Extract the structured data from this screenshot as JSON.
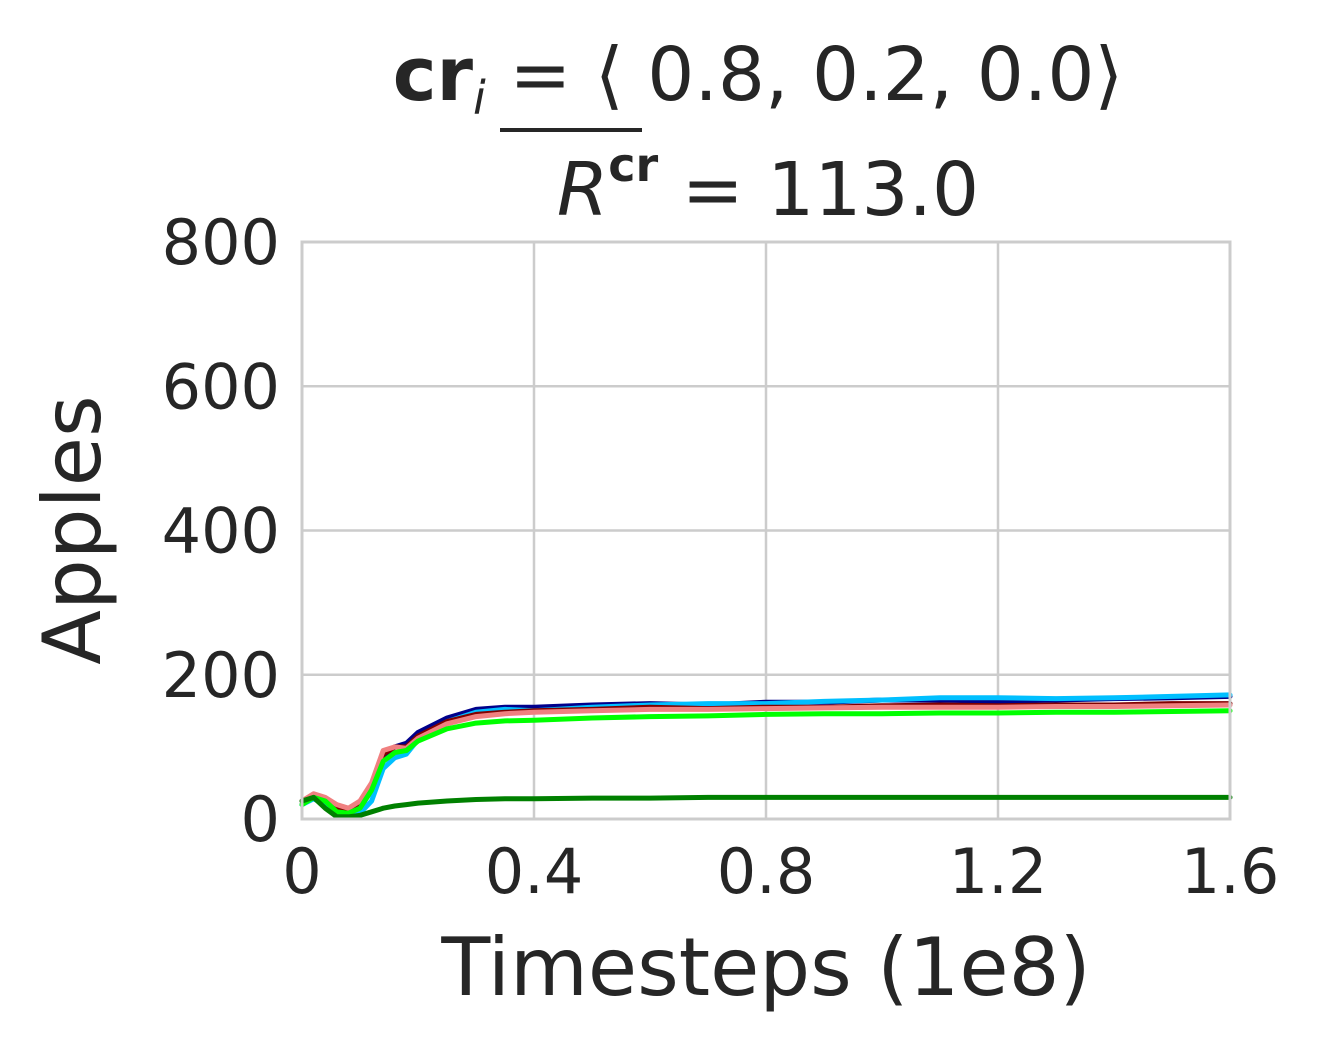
{
  "chart_data": {
    "type": "line",
    "title_line1": {
      "bold": "cr",
      "subscript": "i",
      "rest": " = ⟨ 0.8, 0.2, 0.0⟩"
    },
    "title_line2": {
      "symbol": "R",
      "superscript": "cr",
      "rest": " = 113.0"
    },
    "xlabel": "Timesteps (1e8)",
    "ylabel": "Apples",
    "xlim": [
      0,
      1.6
    ],
    "ylim": [
      0,
      800
    ],
    "xticks": [
      "0",
      "0.4",
      "0.8",
      "1.2",
      "1.6"
    ],
    "yticks": [
      "0",
      "200",
      "400",
      "600",
      "800"
    ],
    "grid": true,
    "series": [
      {
        "color": "#00008b",
        "x": [
          0,
          0.02,
          0.04,
          0.06,
          0.08,
          0.1,
          0.12,
          0.14,
          0.16,
          0.18,
          0.2,
          0.25,
          0.3,
          0.35,
          0.4,
          0.5,
          0.6,
          0.7,
          0.8,
          0.9,
          1.0,
          1.1,
          1.2,
          1.3,
          1.4,
          1.5,
          1.6
        ],
        "y": [
          20,
          30,
          25,
          10,
          5,
          15,
          40,
          85,
          100,
          105,
          120,
          140,
          152,
          155,
          155,
          158,
          160,
          158,
          162,
          162,
          165,
          165,
          163,
          165,
          167,
          168,
          170
        ]
      },
      {
        "color": "#00bfff",
        "x": [
          0,
          0.02,
          0.04,
          0.06,
          0.08,
          0.1,
          0.12,
          0.14,
          0.16,
          0.18,
          0.2,
          0.25,
          0.3,
          0.35,
          0.4,
          0.5,
          0.6,
          0.7,
          0.8,
          0.9,
          1.0,
          1.1,
          1.2,
          1.3,
          1.4,
          1.5,
          1.6
        ],
        "y": [
          20,
          28,
          20,
          5,
          5,
          8,
          25,
          70,
          85,
          90,
          110,
          135,
          148,
          152,
          150,
          155,
          158,
          160,
          160,
          163,
          165,
          168,
          168,
          167,
          168,
          170,
          172
        ]
      },
      {
        "color": "#800000",
        "x": [
          0,
          0.02,
          0.04,
          0.06,
          0.08,
          0.1,
          0.12,
          0.14,
          0.16,
          0.18,
          0.2,
          0.25,
          0.3,
          0.35,
          0.4,
          0.5,
          0.6,
          0.7,
          0.8,
          0.9,
          1.0,
          1.1,
          1.2,
          1.3,
          1.4,
          1.5,
          1.6
        ],
        "y": [
          25,
          32,
          28,
          15,
          12,
          20,
          45,
          90,
          100,
          100,
          115,
          135,
          145,
          148,
          150,
          152,
          155,
          153,
          155,
          155,
          157,
          158,
          157,
          158,
          158,
          160,
          160
        ]
      },
      {
        "color": "#f08080",
        "x": [
          0,
          0.02,
          0.04,
          0.06,
          0.08,
          0.1,
          0.12,
          0.14,
          0.16,
          0.18,
          0.2,
          0.25,
          0.3,
          0.35,
          0.4,
          0.5,
          0.6,
          0.7,
          0.8,
          0.9,
          1.0,
          1.1,
          1.2,
          1.3,
          1.4,
          1.5,
          1.6
        ],
        "y": [
          25,
          35,
          30,
          20,
          15,
          25,
          50,
          95,
          100,
          98,
          112,
          132,
          142,
          146,
          148,
          150,
          152,
          152,
          153,
          154,
          155,
          155,
          155,
          156,
          156,
          157,
          158
        ]
      },
      {
        "color": "#00ff00",
        "x": [
          0,
          0.02,
          0.04,
          0.06,
          0.08,
          0.1,
          0.12,
          0.14,
          0.16,
          0.18,
          0.2,
          0.25,
          0.3,
          0.35,
          0.4,
          0.5,
          0.6,
          0.7,
          0.8,
          0.9,
          1.0,
          1.1,
          1.2,
          1.3,
          1.4,
          1.5,
          1.6
        ],
        "y": [
          20,
          30,
          25,
          10,
          8,
          15,
          40,
          80,
          92,
          95,
          108,
          125,
          133,
          136,
          137,
          140,
          142,
          143,
          145,
          146,
          146,
          147,
          147,
          148,
          148,
          149,
          150
        ]
      },
      {
        "color": "#008000",
        "x": [
          0,
          0.02,
          0.04,
          0.06,
          0.08,
          0.1,
          0.12,
          0.14,
          0.16,
          0.18,
          0.2,
          0.25,
          0.3,
          0.35,
          0.4,
          0.5,
          0.6,
          0.7,
          0.8,
          0.9,
          1.0,
          1.1,
          1.2,
          1.3,
          1.4,
          1.5,
          1.6
        ],
        "y": [
          25,
          30,
          15,
          3,
          3,
          5,
          10,
          15,
          18,
          20,
          22,
          25,
          27,
          28,
          28,
          29,
          29,
          30,
          30,
          30,
          30,
          30,
          30,
          30,
          30,
          30,
          30
        ]
      }
    ]
  }
}
